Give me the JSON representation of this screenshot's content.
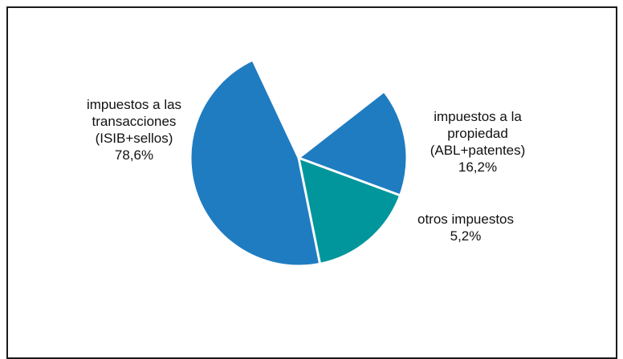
{
  "chart_data": {
    "type": "pie",
    "slices": [
      {
        "label_lines": [
          "impuestos a las",
          "transacciones",
          "(ISIB+sellos)"
        ],
        "value_label": "78,6%",
        "value": 78.6,
        "color": "#1f7cc1"
      },
      {
        "label_lines": [
          "impuestos a la",
          "propiedad",
          "(ABL+patentes)"
        ],
        "value_label": "16,2%",
        "value": 16.2,
        "color": "#00969b"
      },
      {
        "label_lines": [
          "otros impuestos"
        ],
        "value_label": "5,2%",
        "value": 5.2,
        "color": "#f5e92e"
      }
    ]
  }
}
